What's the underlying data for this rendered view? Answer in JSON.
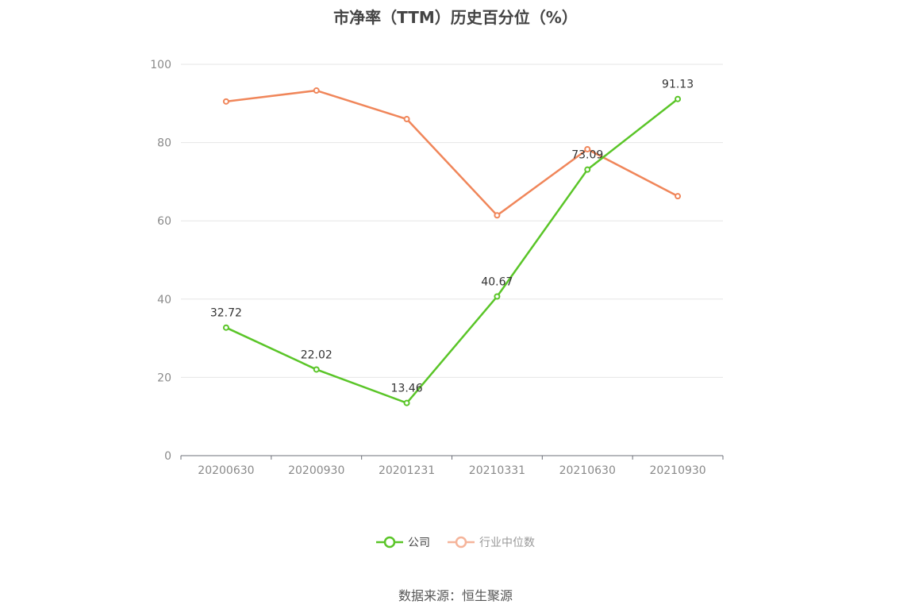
{
  "title": "市净率（TTM）历史百分位（%）",
  "source": "数据来源：恒生聚源",
  "chart_data": {
    "type": "line",
    "title": "市净率（TTM）历史百分位（%）",
    "categories": [
      "20200630",
      "20200930",
      "20201231",
      "20210331",
      "20210630",
      "20210930"
    ],
    "ylim": [
      0,
      100
    ],
    "yticks": [
      0,
      20,
      40,
      60,
      80,
      100
    ],
    "grid": true,
    "legend_position": "bottom",
    "series": [
      {
        "name": "公司",
        "color": "#5ac528",
        "values": [
          32.72,
          22.02,
          13.46,
          40.67,
          73.09,
          91.13
        ],
        "show_labels": true
      },
      {
        "name": "行业中位数",
        "color": "#f0865a",
        "values": [
          90.5,
          93.3,
          86.0,
          61.4,
          78.3,
          66.3
        ],
        "show_labels": false
      }
    ]
  },
  "legend": [
    {
      "label": "公司",
      "color": "#5ac528"
    },
    {
      "label": "行业中位数",
      "color": "#f5b49a"
    }
  ]
}
